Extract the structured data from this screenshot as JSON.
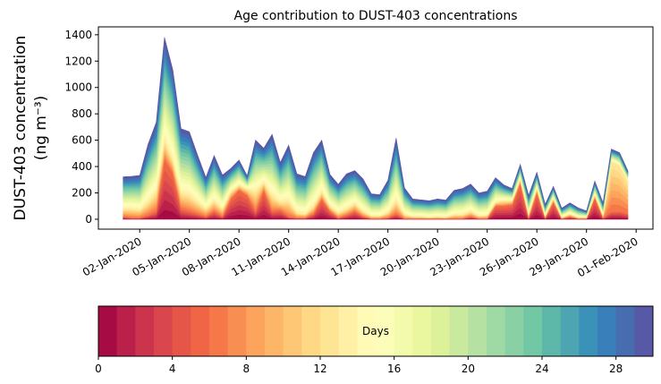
{
  "chart_data": {
    "type": "area",
    "stacked": true,
    "title": "Age contribution to DUST-403 concentrations",
    "ylabel_line1": "DUST-403 concentration",
    "ylabel_line2": "(ng m⁻³)",
    "xlabel": "",
    "ylim": [
      -75,
      1460
    ],
    "yticks": [
      0,
      200,
      400,
      600,
      800,
      1000,
      1200,
      1400
    ],
    "x_start": "01-Jan-2020 00:00",
    "x_step_hours": 12,
    "xtick_days_from_start": [
      1,
      4,
      7,
      10,
      13,
      16,
      19,
      22,
      25,
      28,
      31
    ],
    "xtick_labels": [
      "02-Jan-2020",
      "05-Jan-2020",
      "08-Jan-2020",
      "11-Jan-2020",
      "14-Jan-2020",
      "17-Jan-2020",
      "20-Jan-2020",
      "23-Jan-2020",
      "26-Jan-2020",
      "29-Jan-2020",
      "01-Feb-2020"
    ],
    "grid": false,
    "total": [
      322,
      326,
      333,
      566,
      736,
      1380,
      1133,
      687,
      664,
      487,
      317,
      483,
      335,
      385,
      449,
      329,
      600,
      539,
      644,
      430,
      562,
      344,
      324,
      505,
      600,
      340,
      265,
      344,
      369,
      306,
      193,
      186,
      295,
      616,
      238,
      154,
      147,
      140,
      154,
      145,
      220,
      233,
      267,
      199,
      213,
      315,
      261,
      233,
      417,
      181,
      356,
      113,
      249,
      84,
      125,
      86,
      63,
      290,
      125,
      532,
      505,
      367
    ],
    "age_0_5_days": [
      20,
      10,
      10,
      30,
      60,
      450,
      350,
      80,
      60,
      40,
      20,
      60,
      20,
      150,
      220,
      180,
      60,
      220,
      60,
      70,
      20,
      10,
      10,
      40,
      150,
      60,
      10,
      30,
      60,
      20,
      5,
      5,
      10,
      40,
      5,
      5,
      5,
      5,
      5,
      5,
      5,
      5,
      20,
      5,
      5,
      100,
      100,
      110,
      270,
      10,
      200,
      10,
      130,
      5,
      20,
      5,
      5,
      160,
      10,
      60,
      60,
      40
    ],
    "age_6_12_days": [
      60,
      70,
      60,
      100,
      150,
      150,
      100,
      120,
      120,
      90,
      60,
      80,
      60,
      60,
      40,
      50,
      150,
      60,
      120,
      60,
      120,
      40,
      30,
      60,
      60,
      40,
      40,
      50,
      60,
      40,
      20,
      20,
      40,
      100,
      30,
      15,
      15,
      10,
      15,
      10,
      30,
      30,
      40,
      20,
      25,
      30,
      40,
      30,
      40,
      30,
      40,
      15,
      30,
      10,
      20,
      10,
      10,
      30,
      20,
      380,
      350,
      250
    ],
    "age_bins": 30,
    "colormap": [
      "#9e0142",
      "#d53e4f",
      "#f46d43",
      "#fdae61",
      "#fee08b",
      "#ffffbf",
      "#e6f598",
      "#abdda4",
      "#66c2a5",
      "#3288bd",
      "#5e4fa2"
    ],
    "colorbar": {
      "label": "Days",
      "range": [
        0,
        30
      ],
      "ticks": [
        0,
        4,
        8,
        12,
        16,
        20,
        24,
        28
      ]
    }
  }
}
